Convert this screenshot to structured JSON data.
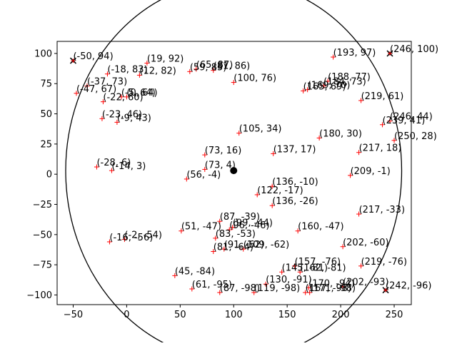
{
  "chart_data": {
    "type": "scatter",
    "title": "",
    "xlabel": "",
    "ylabel": "",
    "xlim": [
      -65,
      266
    ],
    "ylim": [
      -108,
      110
    ],
    "xticks": [
      -50,
      0,
      50,
      100,
      150,
      200,
      250
    ],
    "yticks": [
      -100,
      -75,
      -50,
      -25,
      0,
      25,
      50,
      75,
      100
    ],
    "xtick_labels": [
      "−50",
      "0",
      "50",
      "100",
      "150",
      "200",
      "250"
    ],
    "ytick_labels": [
      "−100",
      "−75",
      "−50",
      "−25",
      "0",
      "25",
      "50",
      "75",
      "100"
    ],
    "grid": false,
    "center": {
      "x": 100,
      "y": 3
    },
    "circle_radius": 157,
    "colors": {
      "points": "#ff0000",
      "extremes": "#000000",
      "circle": "#000000",
      "center": "#000000"
    },
    "points": [
      {
        "x": -50,
        "y": 94,
        "label": "(-50, 94)",
        "marker": "x"
      },
      {
        "x": 19,
        "y": 92,
        "label": "(19, 92)",
        "marker": "+"
      },
      {
        "x": -18,
        "y": 83,
        "label": "(-18, 83)",
        "marker": "+"
      },
      {
        "x": 12,
        "y": 82,
        "label": "(12, 82)",
        "marker": "+"
      },
      {
        "x": 59,
        "y": 85,
        "label": "(59, 85)",
        "marker": "+"
      },
      {
        "x": 65,
        "y": 87,
        "label": "(65, 87)",
        "marker": "+"
      },
      {
        "x": 81,
        "y": 86,
        "label": "(81, 86)",
        "marker": "+"
      },
      {
        "x": 193,
        "y": 97,
        "label": "(193, 97)",
        "marker": "+"
      },
      {
        "x": 246,
        "y": 100,
        "label": "(246, 100)",
        "marker": "x"
      },
      {
        "x": -37,
        "y": 73,
        "label": "(-37, 73)",
        "marker": "+"
      },
      {
        "x": -47,
        "y": 67,
        "label": "(-47, 67)",
        "marker": "+"
      },
      {
        "x": -5,
        "y": 64,
        "label": "(-5, 64)",
        "marker": "+"
      },
      {
        "x": 0,
        "y": 64,
        "label": "(0, 64)",
        "marker": "+"
      },
      {
        "x": -22,
        "y": 60,
        "label": "(-22, 60)",
        "marker": "+"
      },
      {
        "x": 100,
        "y": 76,
        "label": "(100, 76)",
        "marker": "+"
      },
      {
        "x": 169,
        "y": 70,
        "label": "(169, 70)",
        "marker": "+"
      },
      {
        "x": 188,
        "y": 77,
        "label": "(188, 77)",
        "marker": "+"
      },
      {
        "x": 184,
        "y": 73,
        "label": "(184, 73)",
        "marker": "+"
      },
      {
        "x": 165,
        "y": 69,
        "label": "(165, 69)",
        "marker": "+"
      },
      {
        "x": 219,
        "y": 61,
        "label": "(219, 61)",
        "marker": "+"
      },
      {
        "x": -23,
        "y": 46,
        "label": "(-23, 46)",
        "marker": "+"
      },
      {
        "x": -9,
        "y": 43,
        "label": "(-9, 43)",
        "marker": "+"
      },
      {
        "x": 105,
        "y": 34,
        "label": "(105, 34)",
        "marker": "+"
      },
      {
        "x": 180,
        "y": 30,
        "label": "(180, 30)",
        "marker": "+"
      },
      {
        "x": 246,
        "y": 44,
        "label": "(246, 44)",
        "marker": "+"
      },
      {
        "x": 239,
        "y": 41,
        "label": "(239, 41)",
        "marker": "+"
      },
      {
        "x": 250,
        "y": 28,
        "label": "(250, 28)",
        "marker": "+"
      },
      {
        "x": 73,
        "y": 16,
        "label": "(73, 16)",
        "marker": "+"
      },
      {
        "x": 137,
        "y": 17,
        "label": "(137, 17)",
        "marker": "+"
      },
      {
        "x": 217,
        "y": 18,
        "label": "(217, 18)",
        "marker": "+"
      },
      {
        "x": -28,
        "y": 6,
        "label": "(-28, 6)",
        "marker": "+"
      },
      {
        "x": -14,
        "y": 3,
        "label": "(-14, 3)",
        "marker": "+"
      },
      {
        "x": 73,
        "y": 4,
        "label": "(73, 4)",
        "marker": "+"
      },
      {
        "x": 56,
        "y": -4,
        "label": "(56, -4)",
        "marker": "+"
      },
      {
        "x": 209,
        "y": -1,
        "label": "(209, -1)",
        "marker": "+"
      },
      {
        "x": 136,
        "y": -10,
        "label": "(136, -10)",
        "marker": "+"
      },
      {
        "x": 122,
        "y": -17,
        "label": "(122, -17)",
        "marker": "+"
      },
      {
        "x": 136,
        "y": -26,
        "label": "(136, -26)",
        "marker": "+"
      },
      {
        "x": 217,
        "y": -33,
        "label": "(217, -33)",
        "marker": "+"
      },
      {
        "x": 87,
        "y": -39,
        "label": "(87, -39)",
        "marker": "+"
      },
      {
        "x": 99,
        "y": -44,
        "label": "(99, -44)",
        "marker": "+"
      },
      {
        "x": 96,
        "y": -46,
        "label": "(96, -46)",
        "marker": "+"
      },
      {
        "x": 51,
        "y": -47,
        "label": "(51, -47)",
        "marker": "+"
      },
      {
        "x": 160,
        "y": -47,
        "label": "(160, -47)",
        "marker": "+"
      },
      {
        "x": 83,
        "y": -53,
        "label": "(83, -53)",
        "marker": "+"
      },
      {
        "x": -2,
        "y": -54,
        "label": "(-2, -54)",
        "marker": "+"
      },
      {
        "x": -16,
        "y": -56,
        "label": "(-16, -56)",
        "marker": "+"
      },
      {
        "x": 202,
        "y": -60,
        "label": "(202, -60)",
        "marker": "+"
      },
      {
        "x": 91,
        "y": -62,
        "label": "(91, -62)",
        "marker": "+"
      },
      {
        "x": 109,
        "y": -62,
        "label": "(109, -62)",
        "marker": "+"
      },
      {
        "x": 81,
        "y": -64,
        "label": "(81, -64)",
        "marker": "+"
      },
      {
        "x": 157,
        "y": -76,
        "label": "(157, -76)",
        "marker": "+"
      },
      {
        "x": 219,
        "y": -76,
        "label": "(219, -76)",
        "marker": "+"
      },
      {
        "x": 145,
        "y": -81,
        "label": "(145, -81)",
        "marker": "+"
      },
      {
        "x": 162,
        "y": -81,
        "label": "(162, -81)",
        "marker": "+"
      },
      {
        "x": 45,
        "y": -84,
        "label": "(45, -84)",
        "marker": "+"
      },
      {
        "x": 130,
        "y": -91,
        "label": "(130, -91)",
        "marker": "+"
      },
      {
        "x": 170,
        "y": -94,
        "label": "(170, -94)",
        "marker": "+"
      },
      {
        "x": 202,
        "y": -93,
        "label": "(202, -93)",
        "marker": "+"
      },
      {
        "x": 61,
        "y": -95,
        "label": "(61, -95)",
        "marker": "+"
      },
      {
        "x": 87,
        "y": -98,
        "label": "(87, -98)",
        "marker": "+"
      },
      {
        "x": 119,
        "y": -98,
        "label": "(119, -98)",
        "marker": "+"
      },
      {
        "x": 167,
        "y": -98,
        "label": "(167, -98)",
        "marker": "+"
      },
      {
        "x": 171,
        "y": -98,
        "label": "(171, -98)",
        "marker": "+"
      },
      {
        "x": 242,
        "y": -96,
        "label": "(242, -96)",
        "marker": "x"
      }
    ]
  }
}
